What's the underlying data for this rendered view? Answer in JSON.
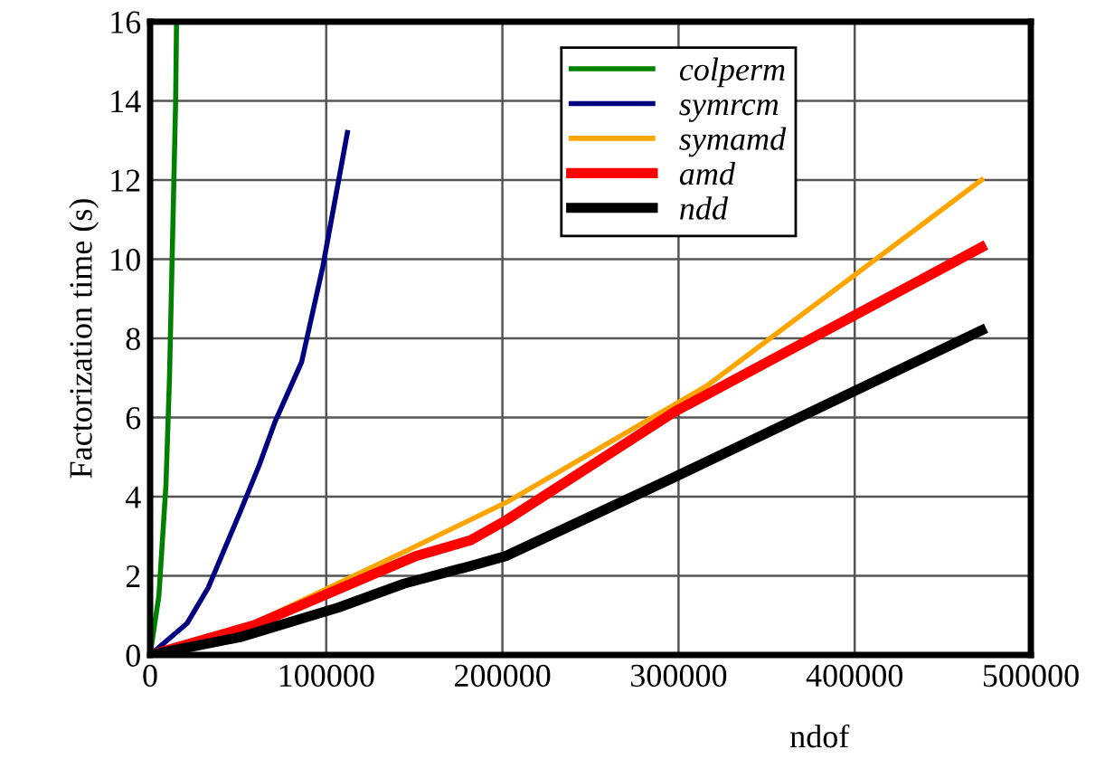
{
  "chart_data": {
    "type": "line",
    "xlabel": "ndof",
    "ylabel": "Factorization time (s)",
    "xlim": [
      0,
      500000
    ],
    "ylim": [
      0,
      16
    ],
    "xticks": [
      0,
      100000,
      200000,
      300000,
      400000,
      500000
    ],
    "yticks": [
      0,
      2,
      4,
      6,
      8,
      10,
      12,
      14,
      16
    ],
    "grid": true,
    "legend": "top",
    "series": [
      {
        "name": "colperm",
        "color": "#008000",
        "x": [
          0,
          5000,
          9000,
          11000,
          12500,
          13500,
          14500,
          15000
        ],
        "values": [
          0,
          1.5,
          4.3,
          7,
          10,
          12,
          14,
          16
        ]
      },
      {
        "name": "symrcm",
        "color": "#000080",
        "x": [
          0,
          21000,
          33000,
          51000,
          62000,
          71000,
          86000,
          98000,
          112000
        ],
        "values": [
          0,
          0.8,
          1.7,
          3.6,
          4.8,
          5.9,
          7.4,
          9.8,
          13.2
        ]
      },
      {
        "name": "symamd",
        "color": "#ffa500",
        "x": [
          0,
          59000,
          144000,
          202000,
          316000,
          472000
        ],
        "values": [
          0,
          0.8,
          2.6,
          3.85,
          6.8,
          12.0
        ]
      },
      {
        "name": "amd",
        "color": "#ff0000",
        "x": [
          0,
          59000,
          151000,
          182000,
          202000,
          298000,
          472000
        ],
        "values": [
          0,
          0.75,
          2.5,
          2.9,
          3.4,
          6.15,
          10.3
        ]
      },
      {
        "name": "ndd",
        "color": "#000000",
        "x": [
          0,
          51000,
          107000,
          144000,
          182000,
          202000,
          298000,
          472000
        ],
        "values": [
          0,
          0.45,
          1.2,
          1.8,
          2.25,
          2.5,
          4.5,
          8.2
        ]
      }
    ]
  }
}
